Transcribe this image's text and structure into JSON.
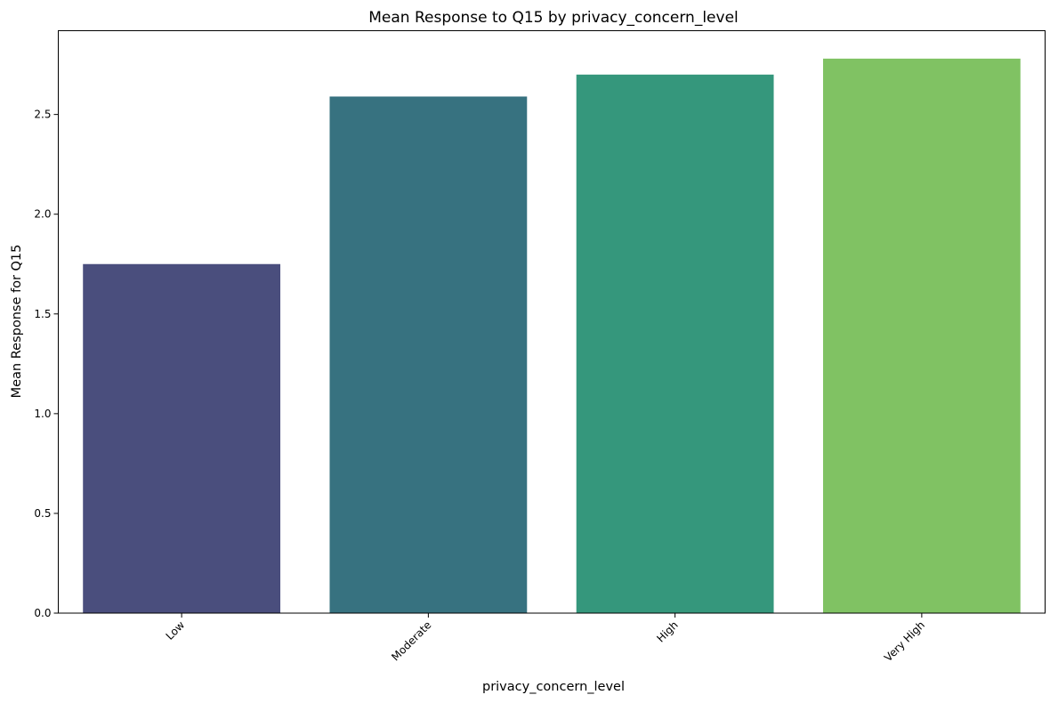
{
  "chart_data": {
    "type": "bar",
    "title": "Mean Response to Q15 by privacy_concern_level",
    "xlabel": "privacy_concern_level",
    "ylabel": "Mean Response for Q15",
    "categories": [
      "Low",
      "Moderate",
      "High",
      "Very High"
    ],
    "values": [
      1.75,
      2.59,
      2.7,
      2.78
    ],
    "colors": [
      "#4a4e7d",
      "#377280",
      "#35977c",
      "#80c263"
    ],
    "ylim": [
      0,
      2.92
    ],
    "yticks": [
      0.0,
      0.5,
      1.0,
      1.5,
      2.0,
      2.5
    ],
    "ytick_labels": [
      "0.0",
      "0.5",
      "1.0",
      "1.5",
      "2.0",
      "2.5"
    ],
    "grid": false,
    "legend": "none"
  }
}
